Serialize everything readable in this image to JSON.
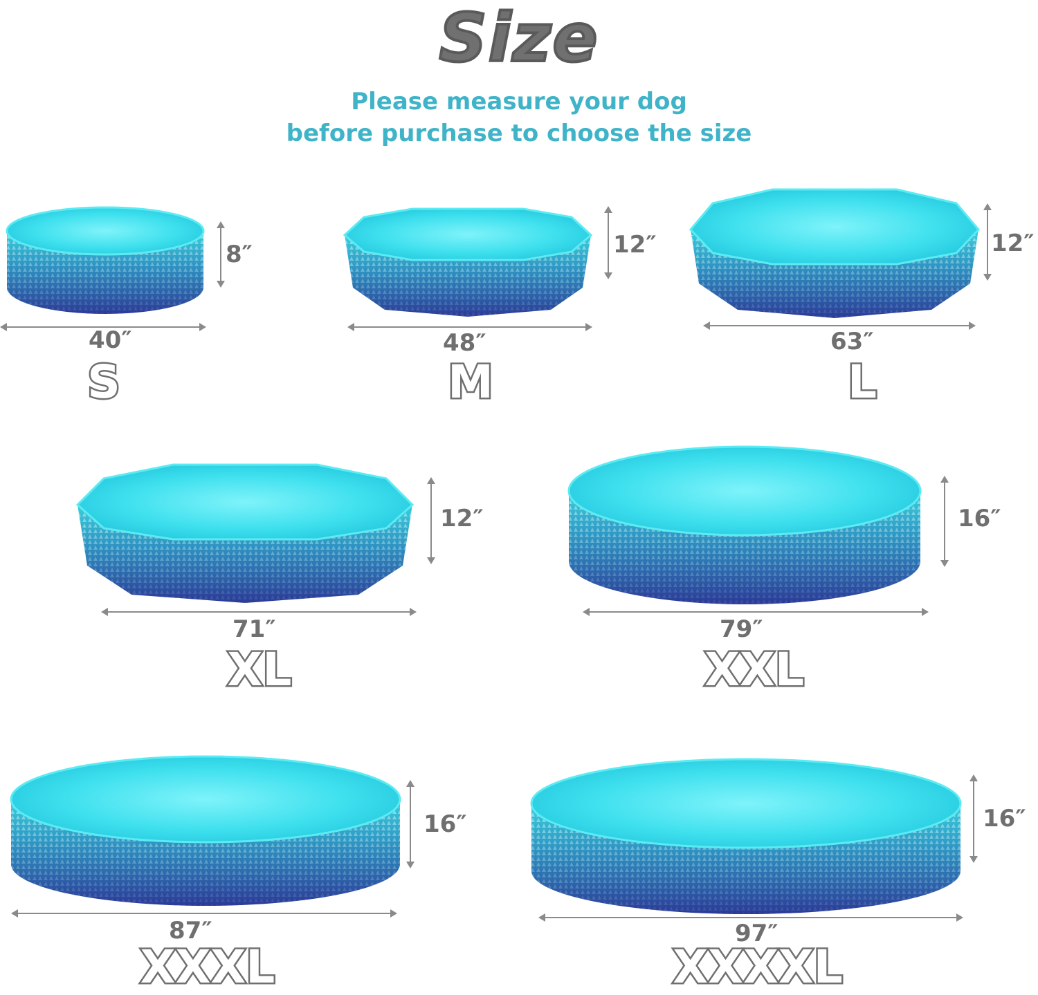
{
  "header": {
    "title": "Size",
    "subtitle_line1": "Please measure your dog",
    "subtitle_line2": "before purchase to choose the size"
  },
  "colors": {
    "water": "#3fe3ef",
    "rim_top": "#38c9d8",
    "rim_bottom": "#2c3f9a",
    "text_gray": "#6f6f6f",
    "accent_teal": "#3fb3c8"
  },
  "sizes": [
    {
      "label": "S",
      "diameter": "40″",
      "height": "8″"
    },
    {
      "label": "M",
      "diameter": "48″",
      "height": "12″"
    },
    {
      "label": "L",
      "diameter": "63″",
      "height": "12″"
    },
    {
      "label": "XL",
      "diameter": "71″",
      "height": "12″"
    },
    {
      "label": "XXL",
      "diameter": "79″",
      "height": "16″"
    },
    {
      "label": "XXXL",
      "diameter": "87″",
      "height": "16″"
    },
    {
      "label": "XXXXL",
      "diameter": "97″",
      "height": "16″"
    }
  ]
}
